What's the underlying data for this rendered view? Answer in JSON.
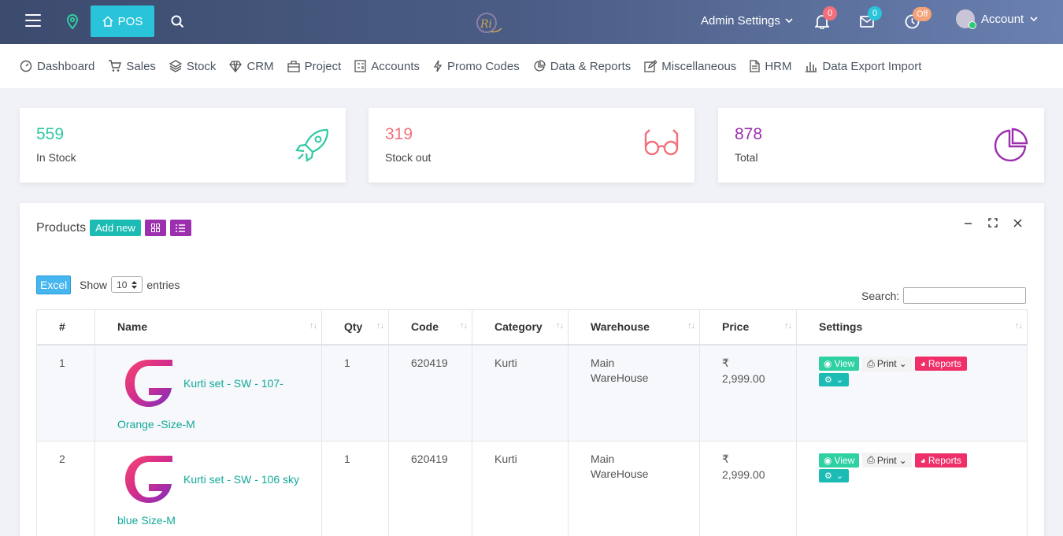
{
  "topbar": {
    "pos_label": "POS",
    "admin_settings_label": "Admin Settings",
    "notifications_count": "0",
    "messages_count": "0",
    "status_badge": "Off",
    "account_label": "Account"
  },
  "nav": {
    "items": [
      {
        "label": "Dashboard"
      },
      {
        "label": "Sales"
      },
      {
        "label": "Stock"
      },
      {
        "label": "CRM"
      },
      {
        "label": "Project"
      },
      {
        "label": "Accounts"
      },
      {
        "label": "Promo Codes"
      },
      {
        "label": "Data & Reports"
      },
      {
        "label": "Miscellaneous"
      },
      {
        "label": "HRM"
      },
      {
        "label": "Data Export Import"
      }
    ]
  },
  "stats": [
    {
      "value": "559",
      "label": "In Stock",
      "color": "#2fc9a3"
    },
    {
      "value": "319",
      "label": "Stock out",
      "color": "#f2707b"
    },
    {
      "value": "878",
      "label": "Total",
      "color": "#9b2fae"
    }
  ],
  "products": {
    "title": "Products",
    "add_new_label": "Add new",
    "excel_label": "Excel",
    "show_label": "Show",
    "entries_value": "10",
    "entries_label": "entries",
    "search_label": "Search:",
    "search_value": "",
    "columns": [
      "#",
      "Name",
      "Qty",
      "Code",
      "Category",
      "Warehouse",
      "Price",
      "Settings"
    ],
    "rows": [
      {
        "index": "1",
        "name_line1": "Kurti set - SW - 107-",
        "name_line2": "Orange -Size-M",
        "qty": "1",
        "code": "620419",
        "category": "Kurti",
        "warehouse_line1": "Main",
        "warehouse_line2": "WareHouse",
        "currency": "₹",
        "price": "2,999.00"
      },
      {
        "index": "2",
        "name_line1": "Kurti set - SW - 106 sky",
        "name_line2": "blue Size-M",
        "qty": "1",
        "code": "620419",
        "category": "Kurti",
        "warehouse_line1": "Main",
        "warehouse_line2": "WareHouse",
        "currency": "₹",
        "price": "2,999.00"
      }
    ],
    "actions": {
      "view": "View",
      "print": "Print",
      "reports": "Reports"
    }
  },
  "colors": {
    "accent_cyan": "#29c4d9",
    "teal": "#1cbbb4",
    "purple": "#9b2fae",
    "pink": "#ee2f68",
    "green": "#2ed1a2"
  }
}
